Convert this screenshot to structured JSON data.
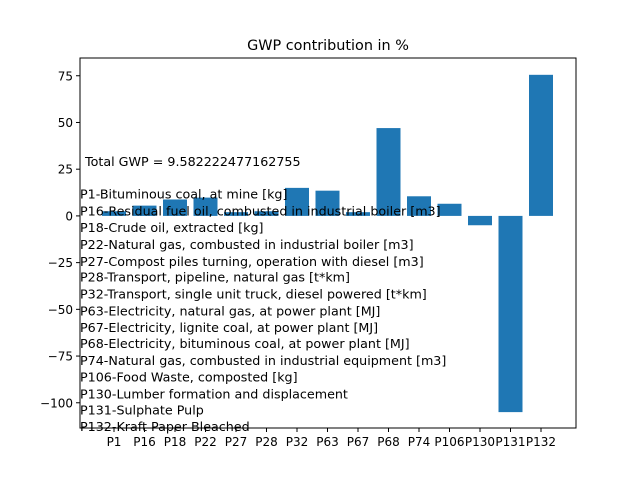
{
  "chart_data": {
    "type": "bar",
    "title": "GWP contribution in %",
    "xlabel": "",
    "ylabel": "",
    "categories": [
      "P1",
      "P16",
      "P18",
      "P22",
      "P27",
      "P28",
      "P32",
      "P63",
      "P67",
      "P68",
      "P74",
      "P106",
      "P130",
      "P131",
      "P132"
    ],
    "values": [
      2.5,
      5.5,
      8.8,
      9.8,
      2.0,
      2.5,
      15.0,
      13.5,
      2.0,
      47.0,
      10.5,
      6.5,
      -5.0,
      -105.0,
      75.5
    ],
    "ylim": [
      -113.5,
      84.5
    ],
    "yticks": [
      -100,
      -75,
      -50,
      -25,
      0,
      25,
      50,
      75
    ],
    "ytick_labels": [
      "−100",
      "−75",
      "−50",
      "−25",
      "0",
      "25",
      "50",
      "75"
    ],
    "bar_color": "#1f77b4",
    "grid": false,
    "annotations": [
      {
        "text": "Total GWP = 9.582222477162755",
        "y": 29.5
      },
      {
        "text": "P1-Bituminous coal, at mine [kg]",
        "y": 12
      },
      {
        "text": "P16-Residual fuel oil, combusted in industrial boiler [m3]",
        "y": 3
      },
      {
        "text": "P18-Crude oil, extracted [kg]",
        "y": -6
      },
      {
        "text": "P22-Natural gas, combusted in industrial boiler [m3]",
        "y": -15
      },
      {
        "text": "P27-Compost piles turning, operation with diesel [m3]",
        "y": -24
      },
      {
        "text": "P28-Transport, pipeline, natural gas [t*km]",
        "y": -32.5
      },
      {
        "text": "P32-Transport, single unit truck, diesel powered [t*km]",
        "y": -41.5
      },
      {
        "text": "P63-Electricity, natural gas, at power plant [MJ]",
        "y": -50.5
      },
      {
        "text": "P67-Electricity, lignite coal, at power plant [MJ]",
        "y": -59.5
      },
      {
        "text": "P68-Electricity, bituminous coal, at power plant [MJ]",
        "y": -68
      },
      {
        "text": "P74-Natural gas, combusted in industrial equipment [m3]",
        "y": -77
      },
      {
        "text": "P106-Food Waste, composted [kg]",
        "y": -86
      },
      {
        "text": "P130-Lumber formation and displacement",
        "y": -95
      },
      {
        "text": "P131-Sulphate Pulp",
        "y": -103.5
      },
      {
        "text": "P132-Kraft Paper Bleached",
        "y": -112.5
      }
    ]
  }
}
